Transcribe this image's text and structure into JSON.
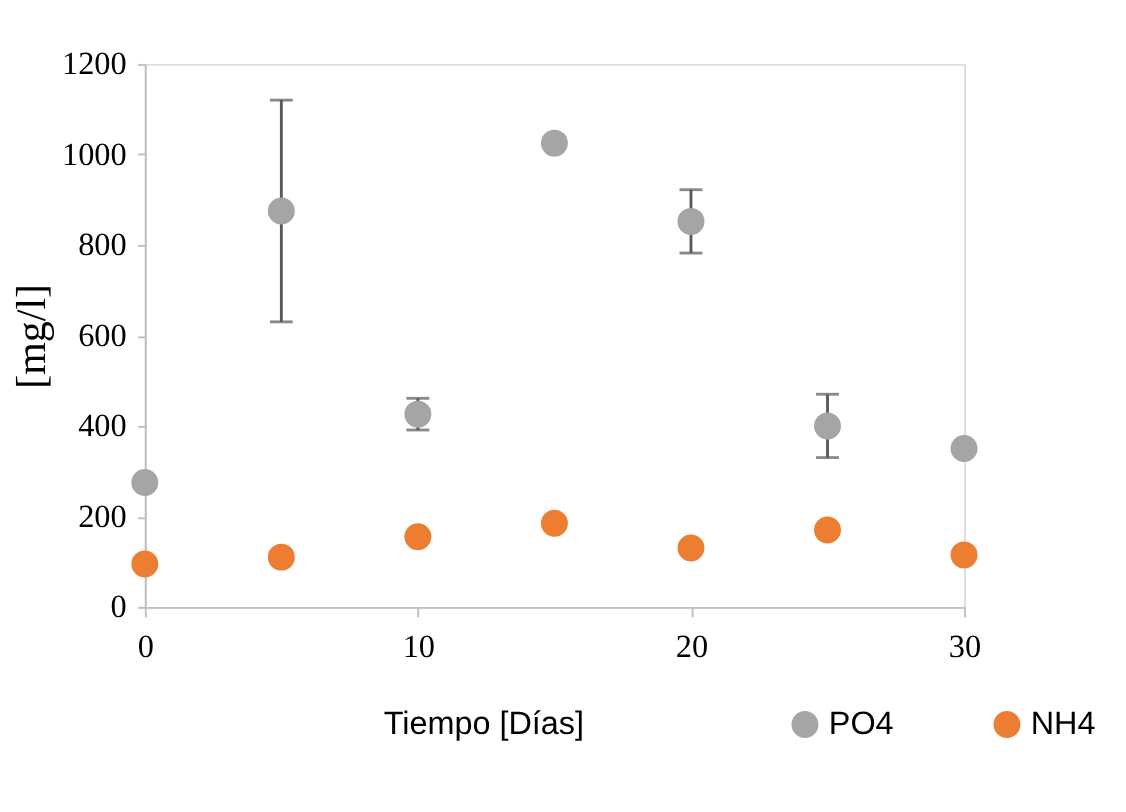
{
  "chart_data": {
    "type": "scatter",
    "xlabel": "Tiempo [Días]",
    "ylabel": "[mg/l]",
    "x": [
      0,
      5,
      10,
      15,
      20,
      25,
      30
    ],
    "series": [
      {
        "name": "PO4",
        "color": "#a5a5a5",
        "values": [
          275,
          875,
          426,
          1025,
          852,
          400,
          350
        ],
        "errors": [
          null,
          245,
          35,
          null,
          70,
          70,
          null
        ]
      },
      {
        "name": "NH4",
        "color": "#ed7d31",
        "values": [
          95,
          110,
          155,
          185,
          130,
          170,
          115
        ]
      }
    ],
    "xlim": [
      0,
      30
    ],
    "xticks": [
      0,
      10,
      20,
      30
    ],
    "ylim": [
      0,
      1200
    ],
    "yticks": [
      0,
      200,
      400,
      600,
      800,
      1000,
      1200
    ],
    "marker": "circle",
    "grid": false,
    "legend": "bottom right"
  }
}
